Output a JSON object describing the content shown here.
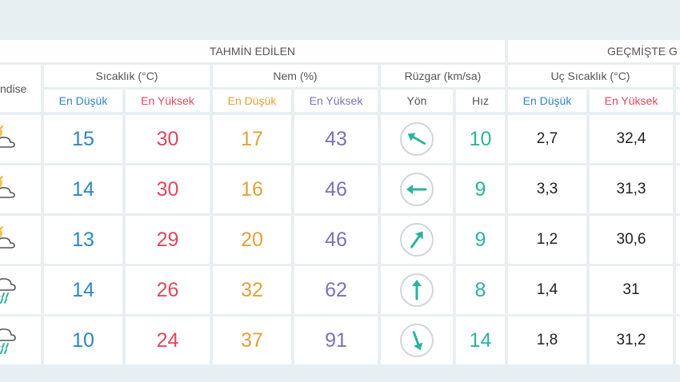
{
  "headers": {
    "forecast": "TAHMİN EDİLEN",
    "past": "GEÇMİŞTE G",
    "event": "ndise",
    "temperature": "Sıcaklık (°C)",
    "humidity": "Nem (%)",
    "wind": "Rüzgar (km/sa)",
    "extreme_temp": "Uç Sıcaklık (°C)"
  },
  "subheaders": {
    "temp_low": "En Düşük",
    "temp_high": "En Yüksek",
    "hum_low": "En Düşük",
    "hum_high": "En Yüksek",
    "wind_dir": "Yön",
    "wind_speed": "Hız",
    "ext_low": "En Düşük",
    "ext_high": "En Yüksek"
  },
  "colors": {
    "low": "#2e86c1",
    "high": "#e0485f",
    "humidity_low": "#e1a23a",
    "humidity_high": "#7a72b6",
    "wind": "#2bb39a"
  },
  "rows": [
    {
      "icon": "partly-cloudy-icon",
      "temp_low": "15",
      "temp_high": "30",
      "hum_low": "17",
      "hum_high": "43",
      "wind_dir_deg": 300,
      "wind_speed": "10",
      "ext_low": "2,7",
      "ext_high": "32,4"
    },
    {
      "icon": "partly-cloudy-icon",
      "temp_low": "14",
      "temp_high": "30",
      "hum_low": "16",
      "hum_high": "46",
      "wind_dir_deg": 270,
      "wind_speed": "9",
      "ext_low": "3,3",
      "ext_high": "31,3"
    },
    {
      "icon": "partly-cloudy-icon",
      "temp_low": "13",
      "temp_high": "29",
      "hum_low": "20",
      "hum_high": "46",
      "wind_dir_deg": 35,
      "wind_speed": "9",
      "ext_low": "1,2",
      "ext_high": "30,6"
    },
    {
      "icon": "thunderstorm-rain-icon",
      "temp_low": "14",
      "temp_high": "26",
      "hum_low": "32",
      "hum_high": "62",
      "wind_dir_deg": 0,
      "wind_speed": "8",
      "ext_low": "1,4",
      "ext_high": "31"
    },
    {
      "icon": "thunderstorm-rain-icon",
      "temp_low": "10",
      "temp_high": "24",
      "hum_low": "37",
      "hum_high": "91",
      "wind_dir_deg": 160,
      "wind_speed": "14",
      "ext_low": "1,8",
      "ext_high": "31,2"
    }
  ]
}
